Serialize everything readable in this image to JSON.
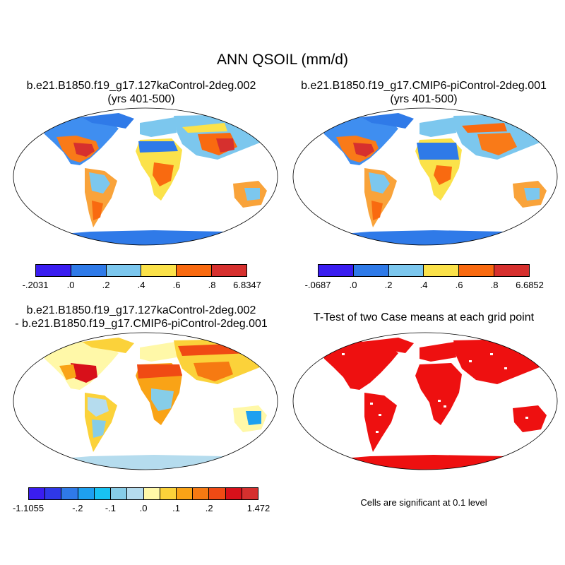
{
  "title": "ANN QSOIL (mm/d)",
  "panels": {
    "case1": {
      "line1": "b.e21.B1850.f19_g17.127kaControl-2deg.002",
      "line2": "(yrs 401-500)"
    },
    "case2": {
      "line1": "b.e21.B1850.f19_g17.CMIP6-piControl-2deg.001",
      "line2": "(yrs 401-500)"
    },
    "diff": {
      "line1": "b.e21.B1850.f19_g17.127kaControl-2deg.002",
      "line2": "- b.e21.B1850.f19_g17.CMIP6-piControl-2deg.001"
    },
    "ttest": {
      "line1": "T-Test of two Case means at each grid point"
    }
  },
  "colorbars": {
    "case1": {
      "colors": [
        "#3a1df0",
        "#2f7ae8",
        "#7cc7ee",
        "#fbe24a",
        "#f96a10",
        "#d6302e"
      ],
      "labels": [
        "-.2031",
        ".0",
        ".2",
        ".4",
        ".6",
        ".8",
        "6.8347"
      ]
    },
    "case2": {
      "colors": [
        "#3a1df0",
        "#2f7ae8",
        "#7cc7ee",
        "#fbe24a",
        "#f96a10",
        "#d6302e"
      ],
      "labels": [
        "-.0687",
        ".0",
        ".2",
        ".4",
        ".6",
        ".8",
        "6.6852"
      ]
    },
    "diff": {
      "colors": [
        "#3a1df0",
        "#2f38e8",
        "#2f7ae8",
        "#1ea0f0",
        "#18c2f2",
        "#86cde8",
        "#b5dcee",
        "#fff8a8",
        "#fbd23a",
        "#f9a316",
        "#f67a12",
        "#f04a14",
        "#d8101a",
        "#d6302e"
      ],
      "labels": [
        "-1.1055",
        "-.2",
        "-.1",
        ".0",
        ".1",
        ".2",
        "1.472"
      ]
    }
  },
  "note": "Cells are significant at 0.1 level"
}
